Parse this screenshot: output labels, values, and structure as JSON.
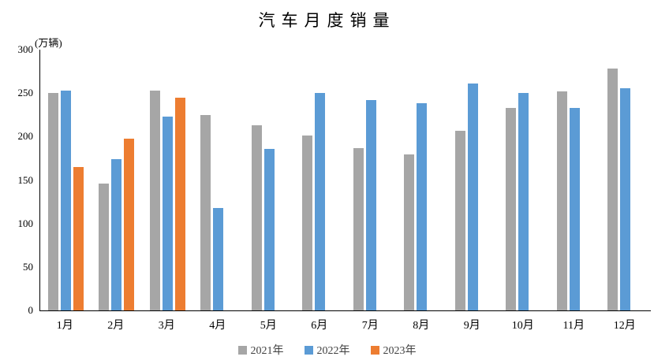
{
  "chart_data": {
    "type": "bar",
    "title": "汽车月度销量",
    "ylabel": "(万辆)",
    "xlabel": "",
    "categories": [
      "1月",
      "2月",
      "3月",
      "4月",
      "5月",
      "6月",
      "7月",
      "8月",
      "9月",
      "10月",
      "11月",
      "12月"
    ],
    "series": [
      {
        "name": "2021年",
        "color": "#A6A6A6",
        "values": [
          250.3,
          145.5,
          252.6,
          225.2,
          212.8,
          201.5,
          186.4,
          179.9,
          206.7,
          233.3,
          252.2,
          278.6
        ]
      },
      {
        "name": "2022年",
        "color": "#5B9BD5",
        "values": [
          253.1,
          173.7,
          223.4,
          118.1,
          186.2,
          250.2,
          242.0,
          238.3,
          261.0,
          250.5,
          232.8,
          255.9
        ]
      },
      {
        "name": "2023年",
        "color": "#ED7D31",
        "values": [
          164.9,
          197.6,
          245.1,
          null,
          null,
          null,
          null,
          null,
          null,
          null,
          null,
          null
        ]
      }
    ],
    "ylim": [
      0,
      300
    ],
    "yticks": [
      0,
      50,
      100,
      150,
      200,
      250,
      300
    ],
    "grid": false,
    "legend_position": "bottom",
    "axis_color": "#000000"
  }
}
